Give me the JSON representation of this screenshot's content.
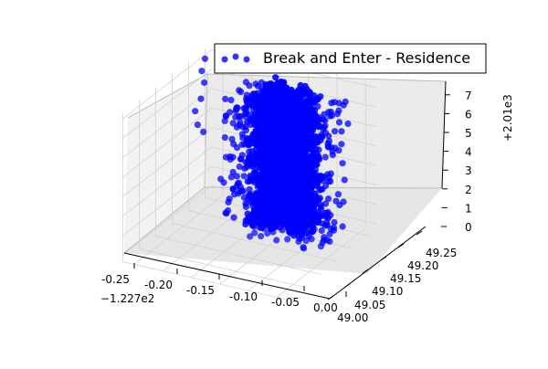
{
  "chart_data": {
    "type": "scatter",
    "projection": "3d",
    "title": "",
    "legend": {
      "label": "Break and Enter - Residence",
      "placement": "top-right"
    },
    "series": [
      {
        "name": "Break and Enter - Residence",
        "color": "#0000ff"
      }
    ],
    "x_axis": {
      "ticks": [
        "-0.25",
        "-0.20",
        "-0.15",
        "-0.10",
        "-0.05",
        "0.00"
      ],
      "offset_label": "−1.227e2",
      "range": [
        -0.27,
        0.02
      ]
    },
    "y_axis": {
      "ticks": [
        "49.00",
        "49.05",
        "49.10",
        "49.15",
        "49.20",
        "49.25"
      ],
      "range": [
        49.0,
        49.28
      ]
    },
    "z_axis": {
      "ticks": [
        "0",
        "1",
        "2",
        "3",
        "4",
        "5",
        "6",
        "7"
      ],
      "offset_label": "+2.01e3",
      "range": [
        0,
        7
      ]
    },
    "pane_color": "#f2f2f2",
    "grid": true,
    "clusters": [
      {
        "z": 2016,
        "x_range": [
          -0.2,
          -0.03
        ],
        "y_range": [
          49.18,
          49.26
        ]
      },
      {
        "z": 2015,
        "x_range": [
          -0.2,
          -0.03
        ],
        "y_range": [
          49.18,
          49.26
        ]
      },
      {
        "z": 2014,
        "x_range": [
          -0.2,
          -0.03
        ],
        "y_range": [
          49.18,
          49.26
        ]
      },
      {
        "z": 2013,
        "x_range": [
          -0.2,
          -0.03
        ],
        "y_range": [
          49.18,
          49.26
        ]
      },
      {
        "z": 2012,
        "x_range": [
          -0.2,
          -0.03
        ],
        "y_range": [
          49.18,
          49.26
        ]
      },
      {
        "z": 2011,
        "x_range": [
          -0.2,
          -0.03
        ],
        "y_range": [
          49.18,
          49.26
        ]
      },
      {
        "z": 2010,
        "x_range": [
          -0.2,
          -0.03
        ],
        "y_range": [
          49.18,
          49.26
        ]
      }
    ],
    "outliers": [
      {
        "x": -0.27,
        "y": 49.25,
        "z": 2016.8
      },
      {
        "x": -0.27,
        "y": 49.24,
        "z": 2016.3
      },
      {
        "x": -0.26,
        "y": 49.23,
        "z": 2015.9
      },
      {
        "x": -0.26,
        "y": 49.22,
        "z": 2015.2
      },
      {
        "x": -0.27,
        "y": 49.22,
        "z": 2014.5
      },
      {
        "x": -0.26,
        "y": 49.21,
        "z": 2014.0
      },
      {
        "x": -0.25,
        "y": 49.21,
        "z": 2013.7
      }
    ]
  }
}
